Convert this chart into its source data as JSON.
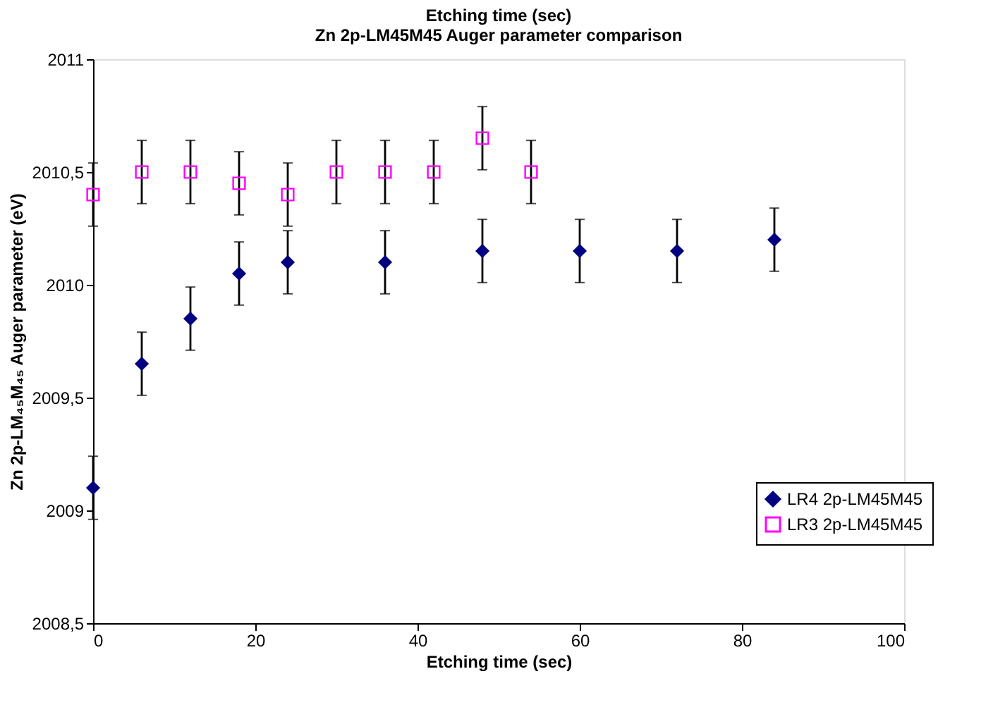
{
  "chart_data": {
    "type": "scatter",
    "title": [
      "Etching time (sec)",
      "Zn 2p-LM45M45 Auger parameter comparison"
    ],
    "xlabel": "Etching time (sec)",
    "ylabel": "Zn 2p-LM₄₅M₄₅ Auger parameter (eV)",
    "xlim": [
      0,
      100
    ],
    "xticks": [
      0,
      20,
      40,
      60,
      80,
      100
    ],
    "ylim": [
      2008.5,
      2011
    ],
    "yticks": [
      {
        "value": 2008.5,
        "label": "2008,5"
      },
      2009,
      {
        "value": 2009.5,
        "label": "2009,5"
      },
      2010,
      {
        "value": 2010.5,
        "label": "2010,5"
      },
      2011
    ],
    "grid": false,
    "legend": "right",
    "series": [
      {
        "name": "LR4 2p-LM45M45",
        "color": "#000080",
        "marker": "diamond",
        "x": [
          0,
          6,
          12,
          18,
          24,
          36,
          48,
          60,
          72,
          84
        ],
        "values": [
          2009.1,
          2009.65,
          2009.85,
          2010.05,
          2010.1,
          2010.1,
          2010.15,
          2010.15,
          2010.15,
          2010.2
        ],
        "errors": [
          0.14,
          0.14,
          0.14,
          0.14,
          0.14,
          0.14,
          0.14,
          0.14,
          0.14,
          0.14
        ]
      },
      {
        "name": "LR3 2p-LM45M45",
        "color": "#ff00ff",
        "marker": "square",
        "x": [
          0,
          6,
          12,
          18,
          24,
          30,
          36,
          42,
          48,
          54
        ],
        "values": [
          2010.4,
          2010.5,
          2010.5,
          2010.45,
          2010.4,
          2010.5,
          2010.5,
          2010.5,
          2010.65,
          2010.5
        ],
        "errors": [
          0.14,
          0.14,
          0.14,
          0.14,
          0.14,
          0.14,
          0.14,
          0.14,
          0.14,
          0.14
        ]
      }
    ]
  }
}
